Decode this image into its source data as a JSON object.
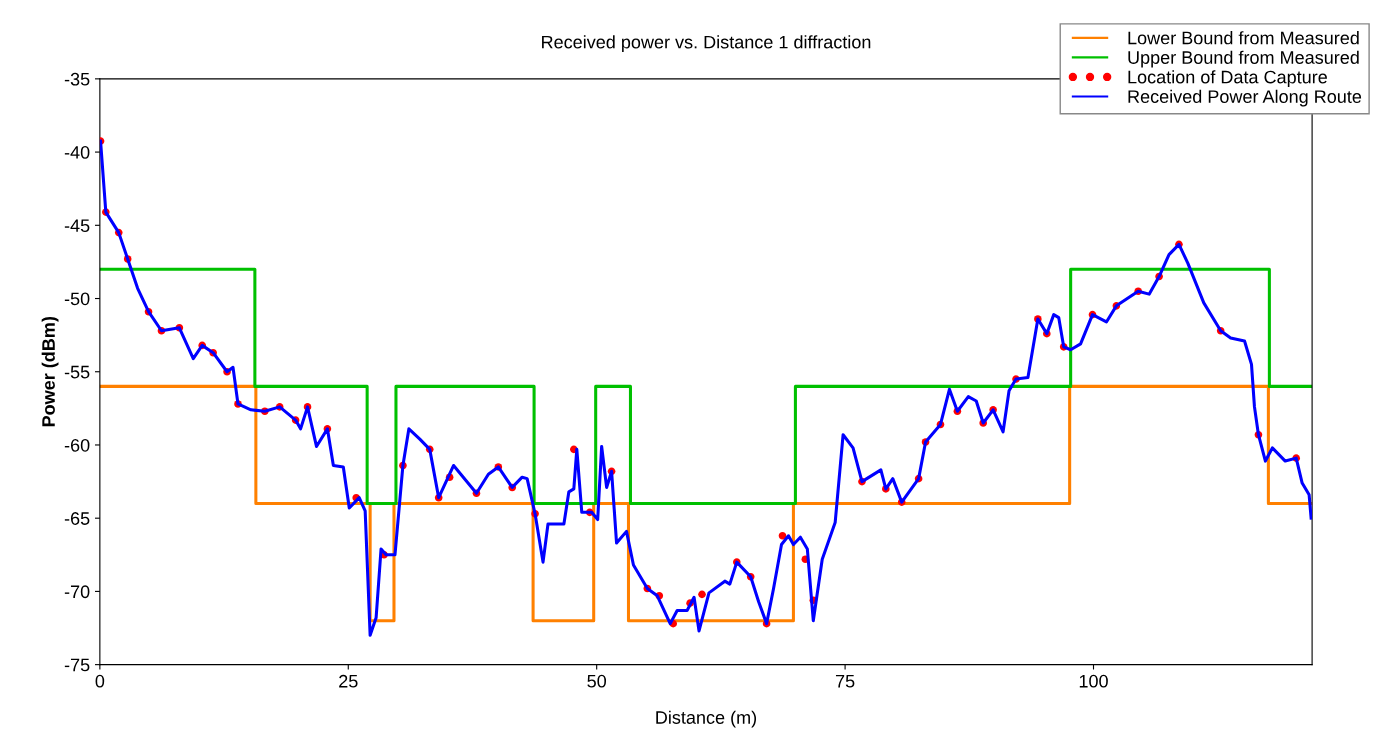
{
  "chart_data": {
    "type": "line",
    "title": "Received power vs. Distance 1 diffraction",
    "xlabel": "Distance (m)",
    "ylabel": "Power (dBm)",
    "xlim": [
      0,
      122
    ],
    "ylim": [
      -75,
      -35
    ],
    "xticks": [
      0,
      25,
      50,
      75,
      100
    ],
    "yticks": [
      -35,
      -40,
      -45,
      -50,
      -55,
      -60,
      -65,
      -70,
      -75
    ],
    "legend": "top right",
    "series": [
      {
        "name": "Lower Bound from Measured",
        "type": "step",
        "color": "#ff8000",
        "x": [
          0,
          15.7,
          27.2,
          29.6,
          43.6,
          49.7,
          53.2,
          69.8,
          97.6,
          117.6,
          122
        ],
        "values": [
          -56,
          -64,
          -72,
          -64,
          -72,
          -64,
          -72,
          -64,
          -56,
          -64,
          -64
        ]
      },
      {
        "name": "Upper Bound from Measured",
        "type": "step",
        "color": "#00c000",
        "x": [
          0,
          15.6,
          26.9,
          29.8,
          43.7,
          49.9,
          53.4,
          70.0,
          97.7,
          117.7,
          122
        ],
        "values": [
          -48,
          -56,
          -64,
          -56,
          -64,
          -56,
          -64,
          -56,
          -48,
          -56,
          -56
        ]
      },
      {
        "name": "Location of Data Capture",
        "type": "scatter",
        "marker": "circle",
        "color": "#ff0000",
        "x": [
          0.07,
          0.6,
          1.9,
          2.8,
          4.9,
          6.2,
          8.0,
          10.3,
          11.4,
          12.8,
          13.9,
          16.6,
          18.1,
          19.7,
          20.9,
          22.9,
          25.8,
          28.6,
          30.5,
          33.2,
          34.1,
          35.2,
          37.9,
          40.1,
          41.5,
          43.8,
          47.7,
          49.3,
          51.5,
          55.1,
          56.3,
          57.7,
          59.4,
          60.6,
          64.1,
          65.5,
          67.1,
          68.7,
          71.0,
          71.8,
          76.7,
          79.1,
          80.7,
          82.4,
          83.1,
          84.6,
          86.3,
          88.9,
          89.9,
          92.2,
          94.4,
          95.3,
          97.0,
          99.9,
          102.3,
          104.5,
          106.6,
          108.6,
          112.8,
          116.6,
          120.4
        ],
        "values": [
          -39.25,
          -44.1,
          -45.5,
          -47.3,
          -50.9,
          -52.2,
          -52.0,
          -53.2,
          -53.7,
          -55.0,
          -57.2,
          -57.7,
          -57.4,
          -58.3,
          -57.4,
          -58.9,
          -63.6,
          -67.5,
          -61.4,
          -60.3,
          -63.6,
          -62.2,
          -63.3,
          -61.5,
          -62.9,
          -64.7,
          -60.3,
          -64.6,
          -61.8,
          -69.8,
          -70.3,
          -72.2,
          -70.8,
          -70.2,
          -68.0,
          -69.0,
          -72.2,
          -66.2,
          -67.8,
          -70.6,
          -62.5,
          -63.0,
          -63.9,
          -62.3,
          -59.8,
          -58.6,
          -57.7,
          -58.5,
          -57.6,
          -55.5,
          -51.4,
          -52.4,
          -53.3,
          -51.1,
          -50.5,
          -49.5,
          -48.5,
          -46.3,
          -52.2,
          -59.3,
          -60.9
        ]
      },
      {
        "name": "Received Power Along Route",
        "color": "#0000ff",
        "x": [
          0.07,
          0.6,
          1.9,
          2.8,
          3.8,
          4.9,
          6.2,
          8.0,
          9.4,
          10.3,
          11.4,
          12.8,
          13.4,
          13.9,
          15.2,
          16.6,
          18.1,
          19.7,
          20.2,
          20.9,
          21.8,
          22.9,
          23.5,
          24.5,
          25.1,
          26.1,
          26.7,
          27.2,
          27.8,
          28.3,
          28.8,
          29.7,
          30.5,
          31.1,
          32.2,
          33.2,
          34.1,
          35.6,
          37.9,
          39.1,
          40.1,
          41.5,
          42.5,
          43.0,
          43.8,
          44.6,
          45.1,
          46.7,
          47.2,
          47.7,
          48.0,
          48.5,
          49.5,
          50.1,
          50.5,
          51.0,
          51.5,
          52.0,
          53.0,
          53.7,
          55.1,
          56.1,
          57.4,
          58.1,
          59.1,
          59.8,
          60.3,
          61.3,
          62.9,
          63.4,
          64.1,
          65.5,
          66.3,
          67.1,
          67.8,
          68.6,
          69.3,
          69.8,
          70.5,
          71.2,
          71.8,
          72.7,
          74.0,
          74.8,
          75.8,
          76.7,
          78.6,
          79.1,
          79.8,
          80.7,
          82.4,
          83.1,
          84.6,
          85.5,
          86.3,
          87.4,
          88.2,
          88.9,
          89.9,
          90.9,
          91.5,
          92.2,
          93.4,
          94.4,
          95.3,
          96.0,
          96.5,
          97.0,
          97.7,
          98.7,
          99.9,
          101.3,
          102.3,
          104.5,
          105.6,
          106.6,
          107.6,
          108.6,
          109.5,
          111.1,
          112.8,
          113.8,
          115.2,
          115.9,
          116.2,
          116.6,
          117.3,
          118.0,
          119.3,
          120.4,
          121.0,
          121.7,
          121.9
        ],
        "values": [
          -39.25,
          -44.1,
          -45.5,
          -47.3,
          -49.3,
          -50.9,
          -52.2,
          -52.0,
          -54.1,
          -53.2,
          -53.7,
          -55.0,
          -54.7,
          -57.2,
          -57.6,
          -57.7,
          -57.4,
          -58.3,
          -58.9,
          -57.4,
          -60.1,
          -58.9,
          -61.4,
          -61.5,
          -64.3,
          -63.6,
          -64.5,
          -73.0,
          -71.8,
          -67.1,
          -67.5,
          -67.5,
          -61.4,
          -58.9,
          -59.6,
          -60.3,
          -63.6,
          -61.4,
          -63.3,
          -62.0,
          -61.5,
          -62.9,
          -62.2,
          -62.3,
          -64.7,
          -68.0,
          -65.4,
          -65.4,
          -63.2,
          -63.0,
          -60.3,
          -64.6,
          -64.6,
          -65.1,
          -60.1,
          -62.9,
          -61.8,
          -66.7,
          -65.9,
          -68.2,
          -69.8,
          -70.3,
          -72.2,
          -71.3,
          -71.3,
          -70.4,
          -72.7,
          -70.1,
          -69.3,
          -69.5,
          -68.0,
          -69.0,
          -70.7,
          -72.2,
          -69.8,
          -66.8,
          -66.2,
          -66.8,
          -66.3,
          -67.1,
          -72.0,
          -67.8,
          -65.3,
          -59.3,
          -60.2,
          -62.5,
          -61.7,
          -63.0,
          -62.3,
          -63.9,
          -62.3,
          -59.8,
          -58.6,
          -56.2,
          -57.7,
          -56.7,
          -57.0,
          -58.5,
          -57.6,
          -59.1,
          -56.3,
          -55.5,
          -55.4,
          -51.4,
          -52.4,
          -51.1,
          -51.3,
          -53.3,
          -53.5,
          -53.1,
          -51.1,
          -51.6,
          -50.5,
          -49.5,
          -49.7,
          -48.5,
          -47.0,
          -46.3,
          -47.6,
          -50.3,
          -52.2,
          -52.7,
          -52.9,
          -54.5,
          -57.4,
          -59.3,
          -61.1,
          -60.2,
          -61.1,
          -60.9,
          -62.6,
          -63.4,
          -65.0
        ]
      }
    ]
  }
}
